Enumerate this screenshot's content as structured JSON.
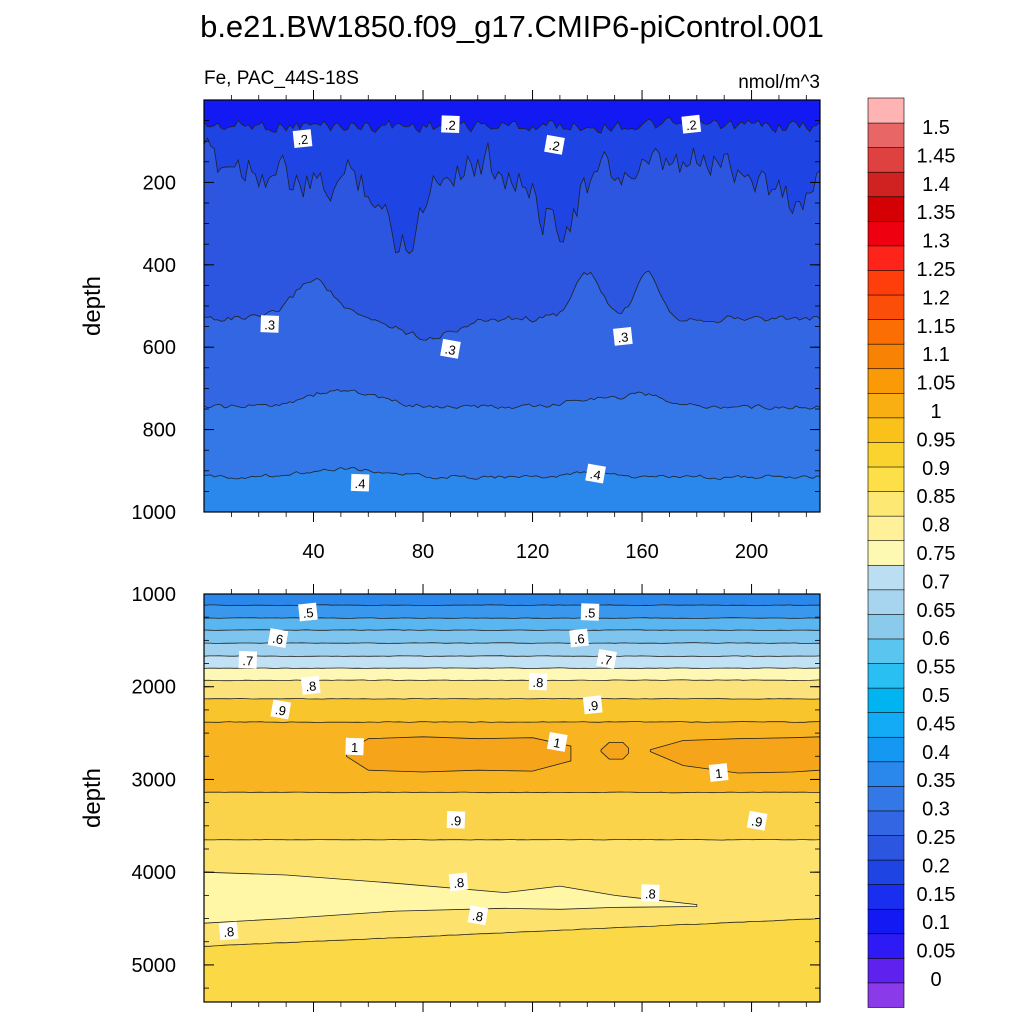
{
  "chart_data": [
    {
      "type": "contour",
      "title": "b.e21.BW1850.f09_g17.CMIP6-piControl.001",
      "subtitle_left": "Fe, PAC_44S-18S",
      "subtitle_right": "nmol/m^3",
      "ylabel": "depth",
      "xlim": [
        0,
        225
      ],
      "ylim": [
        1000,
        0
      ],
      "x_ticks": [
        40,
        80,
        120,
        160,
        200
      ],
      "x_tick_labels": [
        "40",
        "80",
        "120",
        "160",
        "200"
      ],
      "y_ticks": [
        200,
        400,
        600,
        800,
        1000
      ],
      "y_tick_labels": [
        "200",
        "400",
        "600",
        "800",
        "1000"
      ],
      "contour_labels": [
        {
          "text": ".2",
          "x": 36,
          "y": 95
        },
        {
          "text": ".2",
          "x": 90,
          "y": 60
        },
        {
          "text": ".2",
          "x": 128,
          "y": 110
        },
        {
          "text": ".2",
          "x": 178,
          "y": 60
        },
        {
          "text": ".3",
          "x": 24,
          "y": 545
        },
        {
          "text": ".3",
          "x": 90,
          "y": 605
        },
        {
          "text": ".3",
          "x": 153,
          "y": 575
        },
        {
          "text": ".4",
          "x": 57,
          "y": 930
        },
        {
          "text": ".4",
          "x": 143,
          "y": 908
        }
      ]
    },
    {
      "type": "contour",
      "ylabel": "depth",
      "xlim": [
        0,
        225
      ],
      "ylim": [
        5400,
        1000
      ],
      "y_ticks": [
        1000,
        2000,
        3000,
        4000,
        5000
      ],
      "y_tick_labels": [
        "1000",
        "2000",
        "3000",
        "4000",
        "5000"
      ],
      "contour_labels": [
        {
          "text": ".5",
          "x": 38,
          "y": 1200
        },
        {
          "text": ".5",
          "x": 141,
          "y": 1200
        },
        {
          "text": ".6",
          "x": 27,
          "y": 1480
        },
        {
          "text": ".6",
          "x": 137,
          "y": 1480
        },
        {
          "text": ".7",
          "x": 16,
          "y": 1715
        },
        {
          "text": ".7",
          "x": 147,
          "y": 1705
        },
        {
          "text": ".8",
          "x": 39,
          "y": 1990
        },
        {
          "text": ".8",
          "x": 122,
          "y": 1950
        },
        {
          "text": ".9",
          "x": 28,
          "y": 2250
        },
        {
          "text": ".9",
          "x": 142,
          "y": 2200
        },
        {
          "text": "1",
          "x": 55,
          "y": 2650
        },
        {
          "text": "1",
          "x": 129,
          "y": 2600
        },
        {
          "text": "1",
          "x": 188,
          "y": 2930
        },
        {
          "text": ".9",
          "x": 92,
          "y": 3440
        },
        {
          "text": ".9",
          "x": 202,
          "y": 3450
        },
        {
          "text": ".8",
          "x": 93,
          "y": 4110
        },
        {
          "text": ".8",
          "x": 163,
          "y": 4230
        },
        {
          "text": ".8",
          "x": 100,
          "y": 4470
        },
        {
          "text": ".8",
          "x": 9,
          "y": 4640
        }
      ]
    }
  ],
  "colorbar": {
    "labels": [
      "1.5",
      "1.45",
      "1.4",
      "1.35",
      "1.3",
      "1.25",
      "1.2",
      "1.15",
      "1.1",
      "1.05",
      "1",
      "0.95",
      "0.9",
      "0.85",
      "0.8",
      "0.75",
      "0.7",
      "0.65",
      "0.6",
      "0.55",
      "0.5",
      "0.45",
      "0.4",
      "0.35",
      "0.3",
      "0.25",
      "0.2",
      "0.15",
      "0.1",
      "0.05",
      "0"
    ],
    "colors": [
      "#8a3ae8",
      "#5f22ee",
      "#2e1af4",
      "#1219f3",
      "#1a2ef0",
      "#1f44e4",
      "#2c55e0",
      "#3266e3",
      "#3478e8",
      "#2a88ec",
      "#1598f2",
      "#14abf6",
      "#00b4f2",
      "#29bff2",
      "#5ac6ef",
      "#8acbeb",
      "#a7d4ee",
      "#bbdef3",
      "#fdf9b3",
      "#fff09a",
      "#fde874",
      "#fde048",
      "#fbd32e",
      "#fbc11b",
      "#f9ae11",
      "#f99a06",
      "#f88203",
      "#fa6e04",
      "#fb4e08",
      "#ff3e0c",
      "#ff2419",
      "#ee0010",
      "#d40003",
      "#d12222",
      "#df4040",
      "#e86666",
      "#ffb3b3"
    ]
  }
}
